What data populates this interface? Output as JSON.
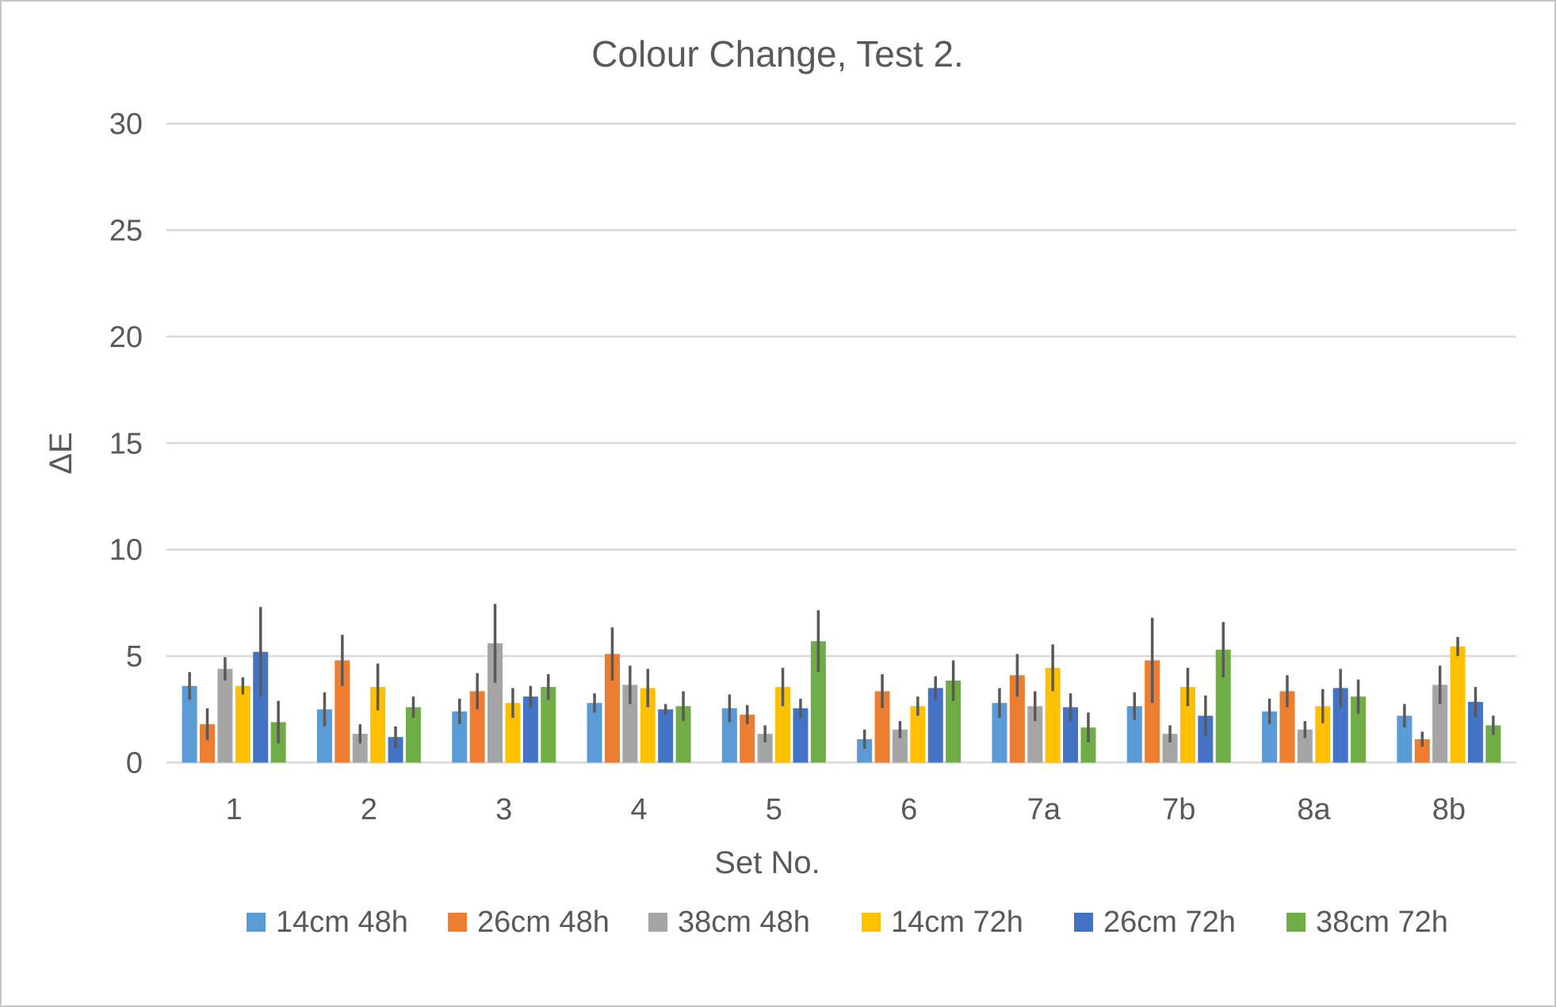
{
  "frame": {
    "background": "#FFFFFF",
    "border_color": "#C6C6C6"
  },
  "chart_data": {
    "type": "bar",
    "title": "Colour Change, Test 2.",
    "xlabel": "Set No.",
    "ylabel": "ΔE",
    "ylim": [
      0,
      30
    ],
    "yticks": [
      0,
      5,
      10,
      15,
      20,
      25,
      30
    ],
    "grid": true,
    "legend_position": "bottom",
    "error_bars": true,
    "categories": [
      "1",
      "2",
      "3",
      "4",
      "5",
      "6",
      "7a",
      "7b",
      "8a",
      "8b"
    ],
    "series": [
      {
        "name": "14cm 48h",
        "color": "#5B9BD5",
        "values": [
          3.6,
          2.5,
          2.4,
          2.8,
          2.55,
          1.1,
          2.8,
          2.65,
          2.4,
          2.2
        ],
        "errors": [
          0.65,
          0.8,
          0.6,
          0.45,
          0.65,
          0.45,
          0.7,
          0.65,
          0.6,
          0.55
        ]
      },
      {
        "name": "26cm 48h",
        "color": "#ED7D31",
        "values": [
          1.8,
          4.8,
          3.35,
          5.1,
          2.25,
          3.35,
          4.1,
          4.8,
          3.35,
          1.1
        ],
        "errors": [
          0.75,
          1.2,
          0.85,
          1.25,
          0.45,
          0.8,
          1.0,
          2.0,
          0.75,
          0.35
        ]
      },
      {
        "name": "38cm 48h",
        "color": "#A5A5A5",
        "values": [
          4.4,
          1.35,
          5.6,
          3.65,
          1.35,
          1.55,
          2.65,
          1.35,
          1.55,
          3.65
        ],
        "errors": [
          0.55,
          0.45,
          1.85,
          0.9,
          0.4,
          0.4,
          0.7,
          0.4,
          0.4,
          0.9
        ]
      },
      {
        "name": "14cm 72h",
        "color": "#FFC000",
        "values": [
          3.6,
          3.55,
          2.8,
          3.5,
          3.55,
          2.65,
          4.45,
          3.55,
          2.65,
          5.45
        ],
        "errors": [
          0.4,
          1.1,
          0.7,
          0.9,
          0.9,
          0.45,
          1.1,
          0.9,
          0.8,
          0.45
        ]
      },
      {
        "name": "26cm 72h",
        "color": "#4472C4",
        "values": [
          5.2,
          1.2,
          3.1,
          2.5,
          2.55,
          3.5,
          2.6,
          2.2,
          3.5,
          2.85
        ],
        "errors": [
          2.1,
          0.5,
          0.5,
          0.25,
          0.45,
          0.55,
          0.65,
          0.95,
          0.9,
          0.7
        ]
      },
      {
        "name": "38cm 72h",
        "color": "#70AD47",
        "values": [
          1.9,
          2.6,
          3.55,
          2.65,
          5.7,
          3.85,
          1.65,
          5.3,
          3.1,
          1.75
        ],
        "errors": [
          1.0,
          0.5,
          0.6,
          0.7,
          1.45,
          0.95,
          0.7,
          1.3,
          0.8,
          0.45
        ]
      }
    ],
    "colors": {
      "text": "#595959",
      "gridline": "#D9D9D9",
      "error_bar": "#595959"
    }
  }
}
